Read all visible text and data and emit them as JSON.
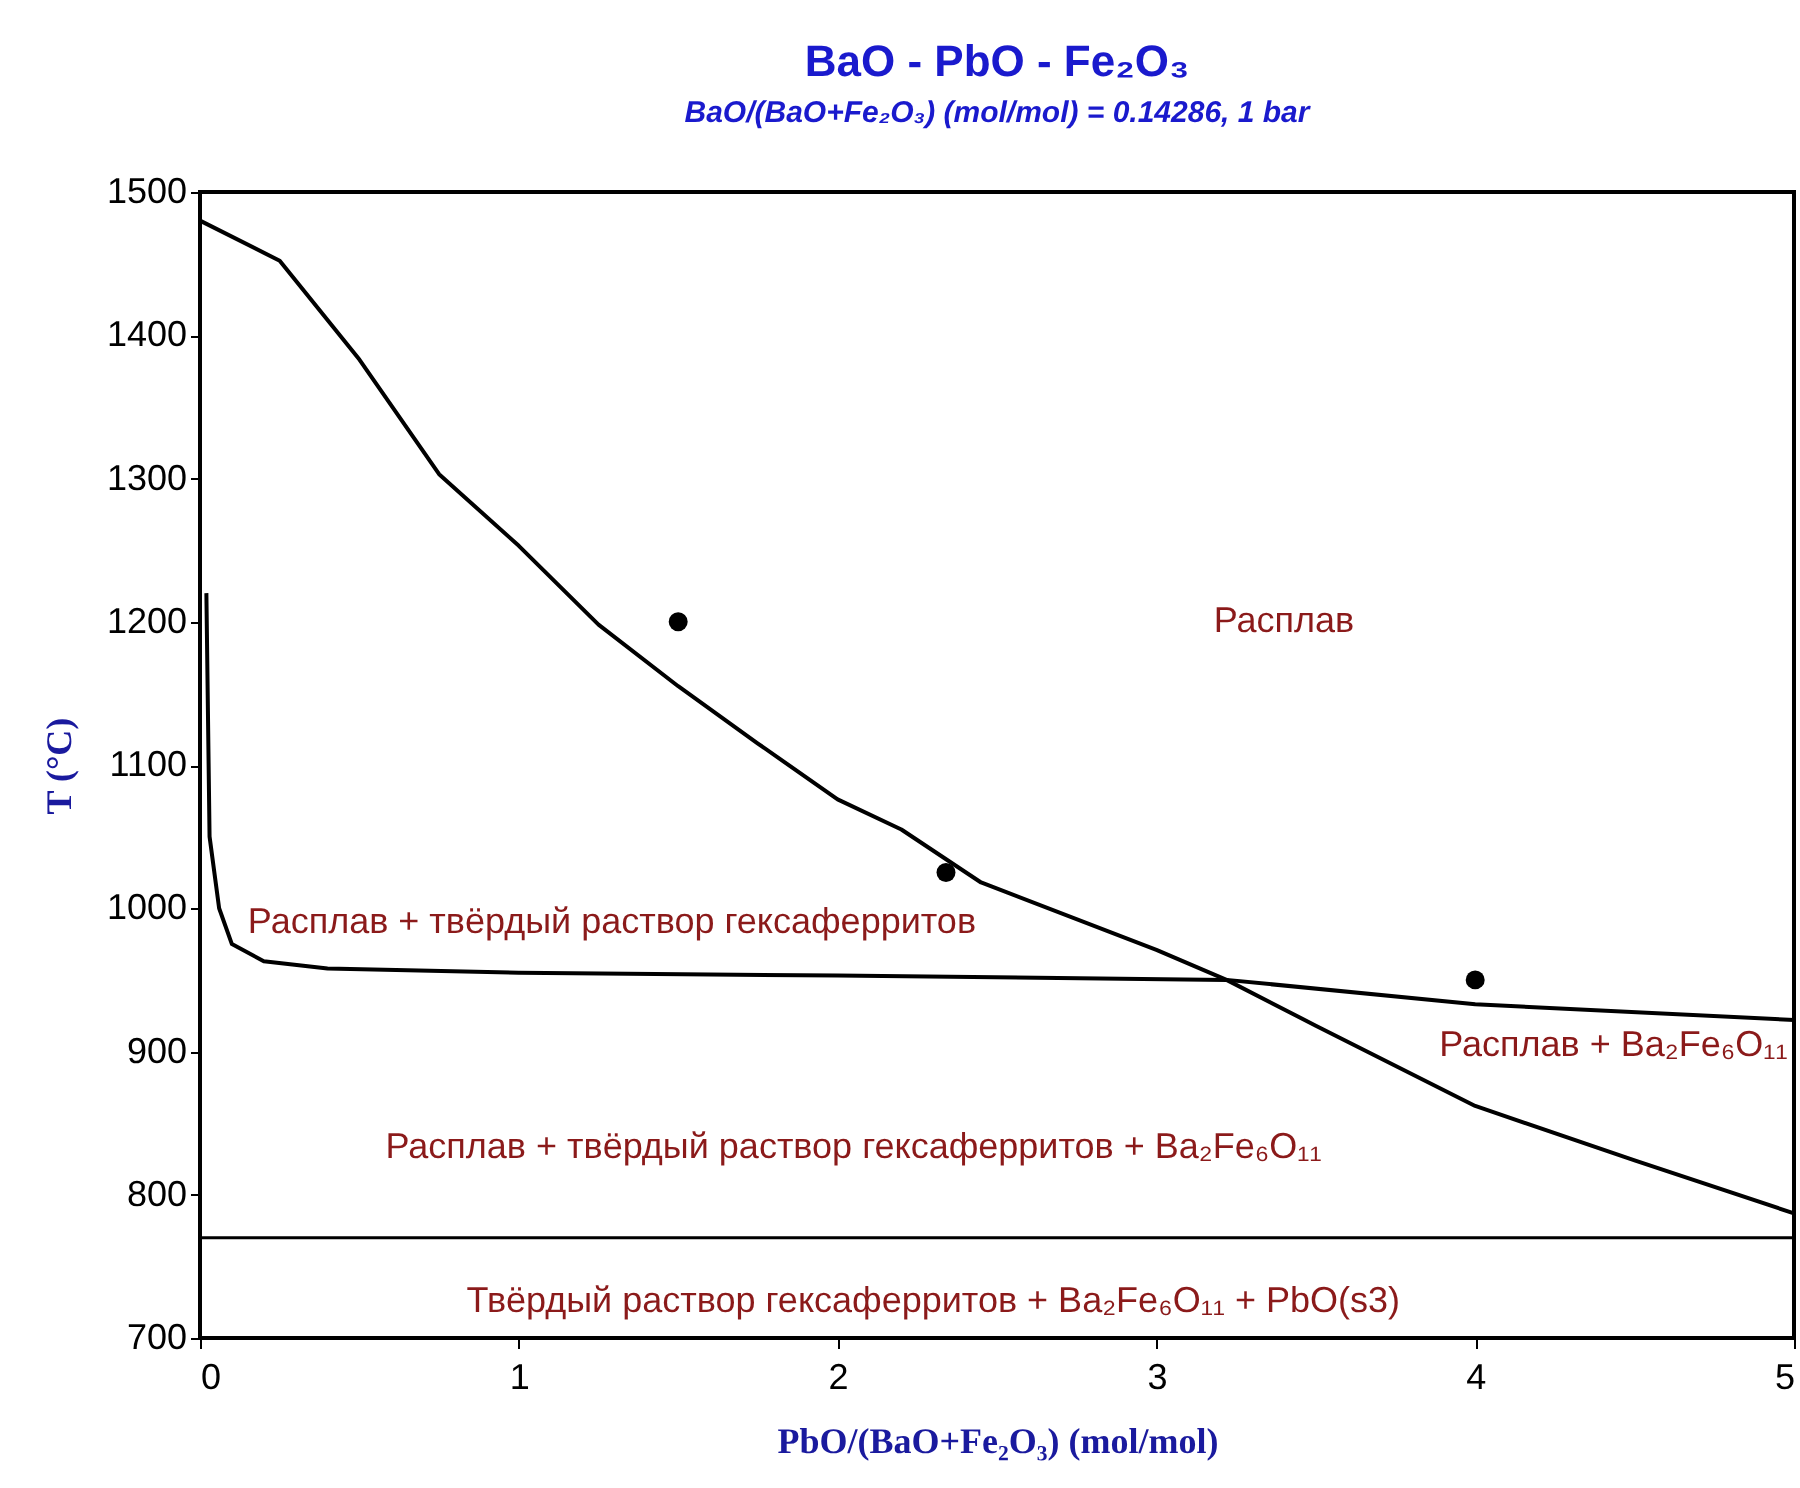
{
  "chart_data": {
    "type": "line",
    "title": "BaO - PbO - Fe₂O₃",
    "subtitle": "BaO/(BaO+Fe₂O₃) (mol/mol)  = 0.14286,  1 bar",
    "xlabel": "PbO/(BaO+Fe₂O₃) (mol/mol)",
    "ylabel": "T (°C)",
    "xlim": [
      0,
      5
    ],
    "xticks": [
      0,
      1,
      2,
      3,
      4,
      5
    ],
    "ylim": [
      700,
      1500
    ],
    "yticks": [
      700,
      800,
      900,
      1000,
      1100,
      1200,
      1300,
      1400,
      1500
    ],
    "grid": false,
    "series": [
      {
        "color": "#000000",
        "x": [
          0,
          0.25,
          0.5,
          0.75,
          1,
          1.25,
          1.5,
          1.75,
          2,
          2.2,
          2.45,
          3,
          3.22,
          3.5,
          4,
          4.5,
          5
        ],
        "values": [
          1480,
          1452,
          1383,
          1303,
          1253,
          1198,
          1155,
          1115,
          1076,
          1055,
          1018,
          971,
          950,
          918,
          862,
          824,
          787
        ]
      },
      {
        "color": "#000000",
        "x": [
          0.02,
          0.03,
          0.06,
          0.1,
          0.2,
          0.4,
          1,
          2,
          3.22,
          4,
          5
        ],
        "values": [
          1220,
          1050,
          1000,
          975,
          963,
          958,
          955,
          953,
          950,
          933,
          922
        ]
      },
      {
        "type": "scatter",
        "marker": "circle",
        "color": "#000000",
        "x": [
          1.5,
          2.34,
          4
        ],
        "values": [
          1200,
          1025,
          950
        ]
      }
    ],
    "ref_lines": [
      {
        "axis": "y",
        "value": 770,
        "color": "#000000"
      }
    ],
    "annotations": [
      "Расплав",
      "Расплав + твёрдый раствор гексаферритов",
      "Расплав + Ba₂Fe₆O₁₁",
      "Расплав + твёрдый раствор гексаферритов + Ba₂Fe₆O₁₁",
      "Твёрдый раствор гексаферритов + Ba₂Fe₆O₁₁ + PbO(s3)"
    ]
  }
}
